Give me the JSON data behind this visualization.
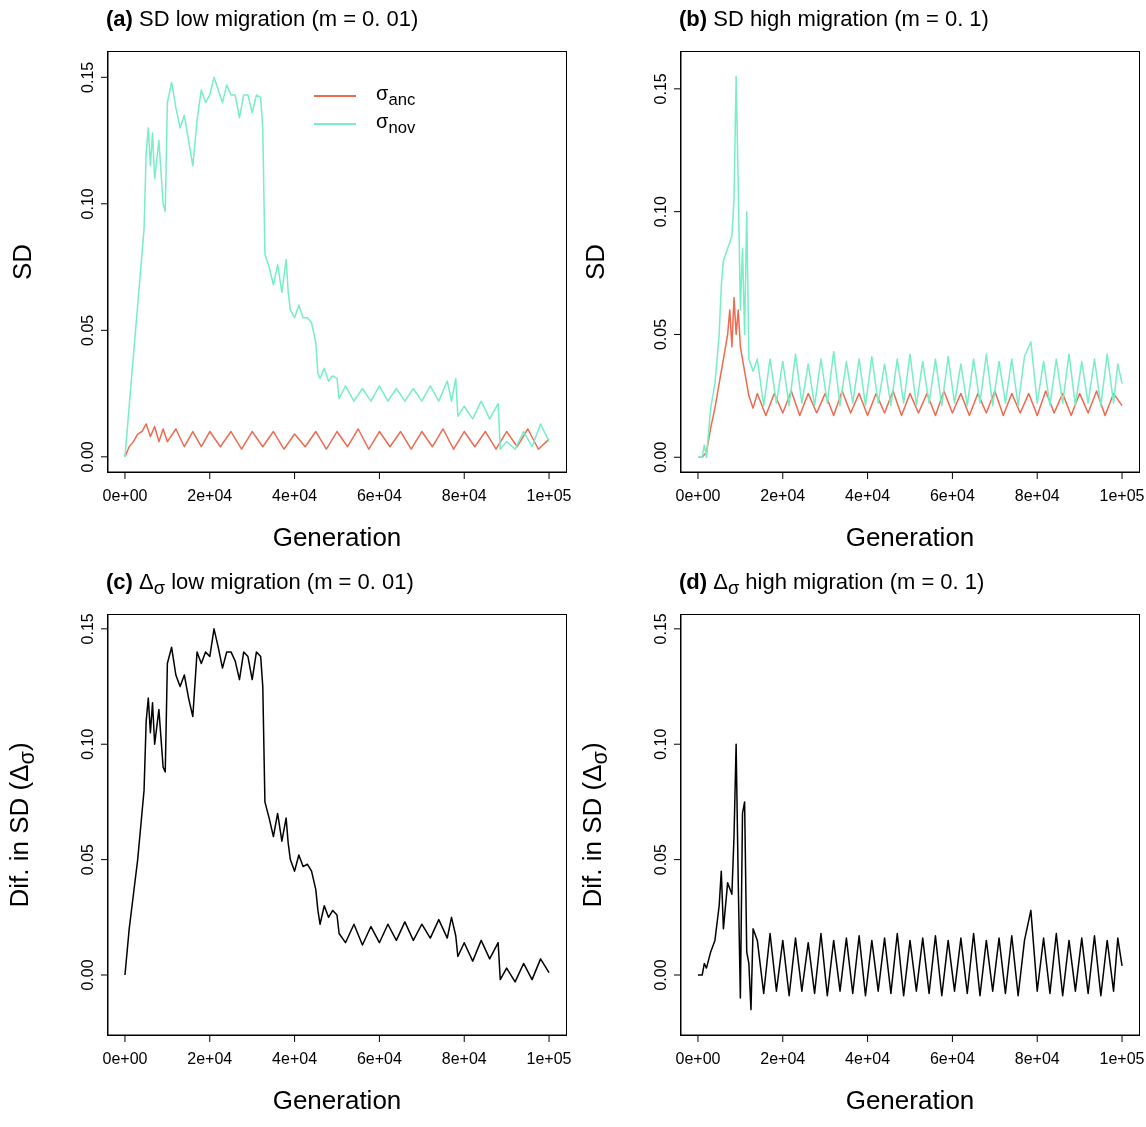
{
  "chart_data": [
    {
      "type": "line",
      "title": "(a) SD low migration (m = 0. 01)",
      "xlabel": "Generation",
      "ylabel": "SD",
      "legend": "top right",
      "xlim": [
        -4000,
        104000
      ],
      "xticks": [
        {
          "value": 0,
          "label": "0e+00"
        },
        {
          "value": 20000,
          "label": "2e+04"
        },
        {
          "value": 40000,
          "label": "4e+04"
        },
        {
          "value": 60000,
          "label": "6e+04"
        },
        {
          "value": 80000,
          "label": "8e+04"
        },
        {
          "value": 100000,
          "label": "1e+05"
        }
      ],
      "ylim": [
        -0.006,
        0.16
      ],
      "yticks": [
        {
          "value": 0,
          "label": "0.00"
        },
        {
          "value": 0.05,
          "label": "0.05"
        },
        {
          "value": 0.1,
          "label": "0.10"
        },
        {
          "value": 0.15,
          "label": "0.15"
        }
      ],
      "series": [
        {
          "name": "σ$_{anc}$",
          "color": "#ee6a50",
          "x": [
            0,
            1000,
            2000,
            3000,
            4000,
            5000,
            6000,
            7000,
            8000,
            9000,
            10000,
            12000,
            14000,
            16000,
            18000,
            20000,
            22500,
            25000,
            27500,
            30000,
            32500,
            35000,
            37500,
            40000,
            42500,
            45000,
            47500,
            50000,
            52500,
            55000,
            57500,
            60000,
            62500,
            65000,
            67500,
            70000,
            72500,
            75000,
            77500,
            80000,
            82500,
            85000,
            87500,
            90000,
            92500,
            95000,
            97500,
            100000
          ],
          "values": [
            0,
            0.004,
            0.006,
            0.009,
            0.01,
            0.013,
            0.008,
            0.012,
            0.006,
            0.011,
            0.006,
            0.011,
            0.004,
            0.01,
            0.004,
            0.01,
            0.004,
            0.01,
            0.003,
            0.01,
            0.004,
            0.01,
            0.003,
            0.009,
            0.004,
            0.01,
            0.003,
            0.01,
            0.004,
            0.011,
            0.003,
            0.01,
            0.004,
            0.01,
            0.003,
            0.01,
            0.004,
            0.011,
            0.003,
            0.01,
            0.004,
            0.01,
            0.003,
            0.01,
            0.004,
            0.011,
            0.003,
            0.007
          ]
        },
        {
          "name": "σ$_{nov}$",
          "color": "#76eec6",
          "x": [
            0,
            1000,
            2000,
            3000,
            4000,
            4500,
            5000,
            5500,
            6000,
            6500,
            7000,
            8000,
            9000,
            9500,
            10000,
            11000,
            12000,
            13000,
            14000,
            15000,
            16000,
            17000,
            18000,
            19000,
            20000,
            21000,
            22000,
            23000,
            24000,
            25000,
            26000,
            27000,
            28000,
            29000,
            30000,
            31000,
            32000,
            32500,
            33000,
            34000,
            35000,
            36000,
            37000,
            38000,
            38500,
            39000,
            40000,
            41000,
            42000,
            43000,
            44000,
            45000,
            45500,
            46000,
            47000,
            48000,
            49000,
            50000,
            50500,
            52000,
            54000,
            56000,
            58000,
            60000,
            62000,
            64000,
            66000,
            68000,
            70000,
            72000,
            74000,
            76000,
            77000,
            78000,
            78500,
            80000,
            82000,
            84000,
            86000,
            88000,
            88500,
            90000,
            92000,
            94000,
            96000,
            98000,
            100000
          ],
          "values": [
            0,
            0.02,
            0.04,
            0.06,
            0.08,
            0.09,
            0.12,
            0.13,
            0.115,
            0.128,
            0.11,
            0.125,
            0.1,
            0.097,
            0.14,
            0.148,
            0.138,
            0.13,
            0.135,
            0.125,
            0.115,
            0.133,
            0.145,
            0.14,
            0.143,
            0.15,
            0.145,
            0.14,
            0.147,
            0.143,
            0.143,
            0.134,
            0.143,
            0.143,
            0.136,
            0.143,
            0.142,
            0.13,
            0.08,
            0.075,
            0.068,
            0.076,
            0.065,
            0.078,
            0.065,
            0.058,
            0.055,
            0.06,
            0.055,
            0.055,
            0.053,
            0.045,
            0.033,
            0.031,
            0.035,
            0.03,
            0.032,
            0.031,
            0.023,
            0.028,
            0.022,
            0.027,
            0.022,
            0.028,
            0.022,
            0.027,
            0.022,
            0.027,
            0.022,
            0.028,
            0.022,
            0.03,
            0.022,
            0.031,
            0.016,
            0.02,
            0.015,
            0.022,
            0.015,
            0.021,
            0.003,
            0.006,
            0.003,
            0.01,
            0.004,
            0.013,
            0.006
          ]
        }
      ]
    },
    {
      "type": "line",
      "title": "(b) SD high migration (m = 0. 1)",
      "xlabel": "Generation",
      "ylabel": "SD",
      "xlim": [
        -4000,
        104000
      ],
      "xticks": [
        {
          "value": 0,
          "label": "0e+00"
        },
        {
          "value": 20000,
          "label": "2e+04"
        },
        {
          "value": 40000,
          "label": "4e+04"
        },
        {
          "value": 60000,
          "label": "6e+04"
        },
        {
          "value": 80000,
          "label": "8e+04"
        },
        {
          "value": 100000,
          "label": "1e+05"
        }
      ],
      "ylim": [
        -0.006,
        0.165
      ],
      "yticks": [
        {
          "value": 0,
          "label": "0.00"
        },
        {
          "value": 0.05,
          "label": "0.05"
        },
        {
          "value": 0.1,
          "label": "0.10"
        },
        {
          "value": 0.15,
          "label": "0.15"
        }
      ],
      "series": [
        {
          "color": "#ee6a50",
          "x": [
            0,
            1000,
            2000,
            3000,
            4000,
            5000,
            6000,
            7000,
            7500,
            8000,
            8500,
            9000,
            9500,
            10000,
            11000,
            12000,
            13000,
            14000,
            16000,
            18000,
            20000,
            22000,
            24000,
            26000,
            28000,
            30000,
            32000,
            34000,
            36000,
            38000,
            40000,
            42000,
            44000,
            46000,
            48000,
            50000,
            52000,
            54000,
            56000,
            58000,
            60000,
            62000,
            64000,
            66000,
            68000,
            70000,
            72000,
            74000,
            76000,
            78000,
            80000,
            82000,
            84000,
            86000,
            88000,
            90000,
            92000,
            94000,
            96000,
            98000,
            100000
          ],
          "values": [
            0,
            0,
            0.002,
            0.012,
            0.02,
            0.03,
            0.04,
            0.05,
            0.06,
            0.045,
            0.065,
            0.05,
            0.06,
            0.045,
            0.035,
            0.025,
            0.02,
            0.026,
            0.017,
            0.026,
            0.018,
            0.027,
            0.017,
            0.026,
            0.018,
            0.026,
            0.017,
            0.027,
            0.018,
            0.026,
            0.017,
            0.026,
            0.018,
            0.027,
            0.017,
            0.026,
            0.018,
            0.026,
            0.017,
            0.027,
            0.018,
            0.026,
            0.017,
            0.026,
            0.018,
            0.027,
            0.017,
            0.026,
            0.018,
            0.026,
            0.017,
            0.027,
            0.018,
            0.026,
            0.017,
            0.026,
            0.018,
            0.027,
            0.017,
            0.026,
            0.021
          ]
        },
        {
          "color": "#76eec6",
          "x": [
            0,
            1000,
            1500,
            2000,
            3000,
            4000,
            5000,
            5500,
            6000,
            7000,
            8000,
            8500,
            9000,
            9500,
            10000,
            10500,
            11000,
            11500,
            12000,
            13000,
            14000,
            15500,
            17000,
            18500,
            20000,
            21500,
            23000,
            24500,
            26000,
            27500,
            29000,
            30500,
            32000,
            33500,
            35000,
            36500,
            38000,
            39500,
            41000,
            42500,
            44000,
            45500,
            47000,
            48500,
            50000,
            51500,
            53000,
            54500,
            56000,
            57500,
            59000,
            60500,
            62000,
            63500,
            65000,
            66500,
            68000,
            69500,
            71000,
            72500,
            74000,
            75500,
            77000,
            78500,
            80000,
            81500,
            83000,
            84500,
            86000,
            87500,
            89000,
            90500,
            92000,
            93500,
            95000,
            96500,
            98000,
            99000,
            100000
          ],
          "values": [
            0,
            0,
            0.005,
            0,
            0.02,
            0.03,
            0.05,
            0.07,
            0.08,
            0.085,
            0.09,
            0.105,
            0.155,
            0.11,
            0.06,
            0.085,
            0.05,
            0.1,
            0.04,
            0.035,
            0.04,
            0.021,
            0.04,
            0.022,
            0.039,
            0.021,
            0.042,
            0.022,
            0.038,
            0.021,
            0.04,
            0.022,
            0.043,
            0.021,
            0.039,
            0.022,
            0.04,
            0.021,
            0.041,
            0.022,
            0.038,
            0.021,
            0.04,
            0.022,
            0.042,
            0.021,
            0.039,
            0.022,
            0.04,
            0.021,
            0.041,
            0.022,
            0.038,
            0.021,
            0.04,
            0.022,
            0.042,
            0.021,
            0.039,
            0.022,
            0.04,
            0.021,
            0.041,
            0.047,
            0.022,
            0.039,
            0.021,
            0.04,
            0.022,
            0.042,
            0.021,
            0.039,
            0.022,
            0.04,
            0.021,
            0.042,
            0.022,
            0.038,
            0.03
          ]
        }
      ]
    },
    {
      "type": "line",
      "title": "(c) Δ$_{σ}$ low migration (m = 0. 01)",
      "xlabel": "Generation",
      "ylabel": "Dif. in SD (Δ$_{σ}$)",
      "xlim": [
        -4000,
        104000
      ],
      "xticks": [
        {
          "value": 0,
          "label": "0e+00"
        },
        {
          "value": 20000,
          "label": "2e+04"
        },
        {
          "value": 40000,
          "label": "4e+04"
        },
        {
          "value": 60000,
          "label": "6e+04"
        },
        {
          "value": 80000,
          "label": "8e+04"
        },
        {
          "value": 100000,
          "label": "1e+05"
        }
      ],
      "ylim": [
        -0.026,
        0.156
      ],
      "yticks": [
        {
          "value": 0,
          "label": "0.00"
        },
        {
          "value": 0.05,
          "label": "0.05"
        },
        {
          "value": 0.1,
          "label": "0.10"
        },
        {
          "value": 0.15,
          "label": "0.15"
        }
      ],
      "series": [
        {
          "color": "#000000",
          "x": [
            0,
            1000,
            2000,
            3000,
            4000,
            4500,
            5000,
            5500,
            6000,
            6500,
            7000,
            8000,
            9000,
            9500,
            10000,
            11000,
            12000,
            13000,
            14000,
            15000,
            16000,
            17000,
            18000,
            19000,
            20000,
            21000,
            22000,
            23000,
            24000,
            25000,
            26000,
            27000,
            28000,
            29000,
            30000,
            31000,
            32000,
            32500,
            33000,
            34000,
            35000,
            36000,
            37000,
            38000,
            38500,
            39000,
            40000,
            41000,
            42000,
            43000,
            44000,
            45000,
            45500,
            46000,
            47000,
            48000,
            49000,
            50000,
            50500,
            52000,
            54000,
            56000,
            58000,
            60000,
            62000,
            64000,
            66000,
            68000,
            70000,
            72000,
            74000,
            76000,
            77000,
            78000,
            78500,
            80000,
            82000,
            84000,
            86000,
            88000,
            88500,
            90000,
            92000,
            94000,
            96000,
            98000,
            100000
          ],
          "values": [
            0,
            0.02,
            0.035,
            0.05,
            0.07,
            0.08,
            0.11,
            0.12,
            0.105,
            0.118,
            0.1,
            0.115,
            0.09,
            0.088,
            0.135,
            0.142,
            0.13,
            0.125,
            0.13,
            0.12,
            0.112,
            0.14,
            0.135,
            0.14,
            0.138,
            0.15,
            0.142,
            0.133,
            0.14,
            0.14,
            0.136,
            0.128,
            0.14,
            0.138,
            0.128,
            0.14,
            0.138,
            0.125,
            0.075,
            0.068,
            0.06,
            0.07,
            0.058,
            0.068,
            0.057,
            0.05,
            0.045,
            0.052,
            0.047,
            0.048,
            0.045,
            0.037,
            0.028,
            0.022,
            0.03,
            0.025,
            0.028,
            0.026,
            0.018,
            0.014,
            0.022,
            0.013,
            0.021,
            0.014,
            0.022,
            0.015,
            0.023,
            0.015,
            0.022,
            0.016,
            0.024,
            0.016,
            0.025,
            0.017,
            0.008,
            0.014,
            0.006,
            0.015,
            0.007,
            0.014,
            -0.002,
            0.003,
            -0.003,
            0.005,
            -0.002,
            0.007,
            0.001
          ]
        }
      ]
    },
    {
      "type": "line",
      "title": "(d) Δ$_{σ}$ high migration (m = 0. 1)",
      "xlabel": "Generation",
      "ylabel": "Dif. in SD (Δ$_{σ}$)",
      "xlim": [
        -4000,
        104000
      ],
      "xticks": [
        {
          "value": 0,
          "label": "0e+00"
        },
        {
          "value": 20000,
          "label": "2e+04"
        },
        {
          "value": 40000,
          "label": "4e+04"
        },
        {
          "value": 60000,
          "label": "6e+04"
        },
        {
          "value": 80000,
          "label": "8e+04"
        },
        {
          "value": 100000,
          "label": "1e+05"
        }
      ],
      "ylim": [
        -0.026,
        0.156
      ],
      "yticks": [
        {
          "value": 0,
          "label": "0.00"
        },
        {
          "value": 0.05,
          "label": "0.05"
        },
        {
          "value": 0.1,
          "label": "0.10"
        },
        {
          "value": 0.15,
          "label": "0.15"
        }
      ],
      "series": [
        {
          "color": "#000000",
          "x": [
            0,
            1000,
            1500,
            2000,
            3000,
            4000,
            5000,
            5500,
            6000,
            7000,
            8000,
            8500,
            9000,
            9500,
            10000,
            10500,
            11000,
            11500,
            12000,
            12500,
            13000,
            14000,
            15500,
            17000,
            18500,
            20000,
            21500,
            23000,
            24500,
            26000,
            27500,
            29000,
            30500,
            32000,
            33500,
            35000,
            36500,
            38000,
            39500,
            41000,
            42500,
            44000,
            45500,
            47000,
            48500,
            50000,
            51500,
            53000,
            54500,
            56000,
            57500,
            59000,
            60500,
            62000,
            63500,
            65000,
            66500,
            68000,
            69500,
            71000,
            72500,
            74000,
            75500,
            77000,
            78500,
            80000,
            81500,
            83000,
            84500,
            86000,
            87500,
            89000,
            90500,
            92000,
            93500,
            95000,
            96500,
            98000,
            99000,
            100000
          ],
          "values": [
            0,
            0,
            0.005,
            0.003,
            0.01,
            0.015,
            0.03,
            0.045,
            0.02,
            0.04,
            0.035,
            0.06,
            0.1,
            0.04,
            -0.01,
            0.07,
            0.075,
            0.01,
            0.005,
            -0.015,
            0.02,
            0.015,
            -0.008,
            0.018,
            -0.007,
            0.015,
            -0.009,
            0.016,
            -0.007,
            0.014,
            -0.008,
            0.018,
            -0.009,
            0.015,
            -0.007,
            0.016,
            -0.008,
            0.017,
            -0.009,
            0.015,
            -0.007,
            0.016,
            -0.008,
            0.018,
            -0.009,
            0.015,
            -0.007,
            0.016,
            -0.008,
            0.017,
            -0.009,
            0.015,
            -0.007,
            0.016,
            -0.008,
            0.018,
            -0.009,
            0.015,
            -0.007,
            0.016,
            -0.008,
            0.017,
            -0.009,
            0.015,
            0.028,
            -0.007,
            0.016,
            -0.008,
            0.018,
            -0.009,
            0.015,
            -0.007,
            0.016,
            -0.008,
            0.017,
            -0.009,
            0.015,
            -0.007,
            0.016,
            0.004
          ]
        }
      ]
    }
  ]
}
